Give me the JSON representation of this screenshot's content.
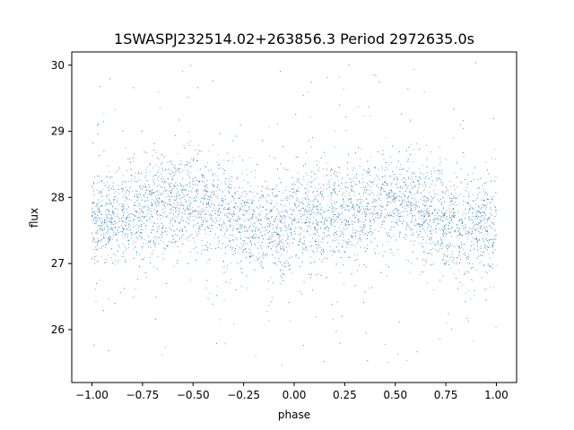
{
  "chart_data": {
    "type": "scatter",
    "title": "1SWASPJ232514.02+263856.3 Period 2972635.0s",
    "xlabel": "phase",
    "ylabel": "flux",
    "xlim": [
      -1.1,
      1.1
    ],
    "ylim": [
      25.2,
      30.2
    ],
    "x_ticks": [
      -1.0,
      -0.75,
      -0.5,
      -0.25,
      0.0,
      0.25,
      0.5,
      0.75,
      1.0
    ],
    "x_tick_labels": [
      "−1.00",
      "−0.75",
      "−0.50",
      "−0.25",
      "0.00",
      "0.25",
      "0.50",
      "0.75",
      "1.00"
    ],
    "y_ticks": [
      26,
      27,
      28,
      29,
      30
    ],
    "y_tick_labels": [
      "26",
      "27",
      "28",
      "29",
      "30"
    ],
    "grid": false,
    "legend": "none",
    "point_color": "#1f77b4",
    "series": [
      {
        "phase_range": [
          -1.0,
          1.0
        ],
        "mean_flux_by_phase": {
          "x": [
            -1.0,
            -0.9,
            -0.8,
            -0.7,
            -0.6,
            -0.5,
            -0.4,
            -0.3,
            -0.2,
            -0.1,
            0.0,
            0.1,
            0.2,
            0.3,
            0.4,
            0.5,
            0.6,
            0.7,
            0.8,
            0.9,
            1.0
          ],
          "y": [
            27.6,
            27.7,
            27.75,
            27.85,
            27.9,
            27.95,
            27.85,
            27.7,
            27.55,
            27.55,
            27.6,
            27.7,
            27.75,
            27.85,
            27.9,
            27.95,
            27.85,
            27.7,
            27.55,
            27.55,
            27.6
          ]
        },
        "typical_spread": 0.35,
        "flux_extremes": [
          25.45,
          30.05
        ]
      }
    ]
  }
}
